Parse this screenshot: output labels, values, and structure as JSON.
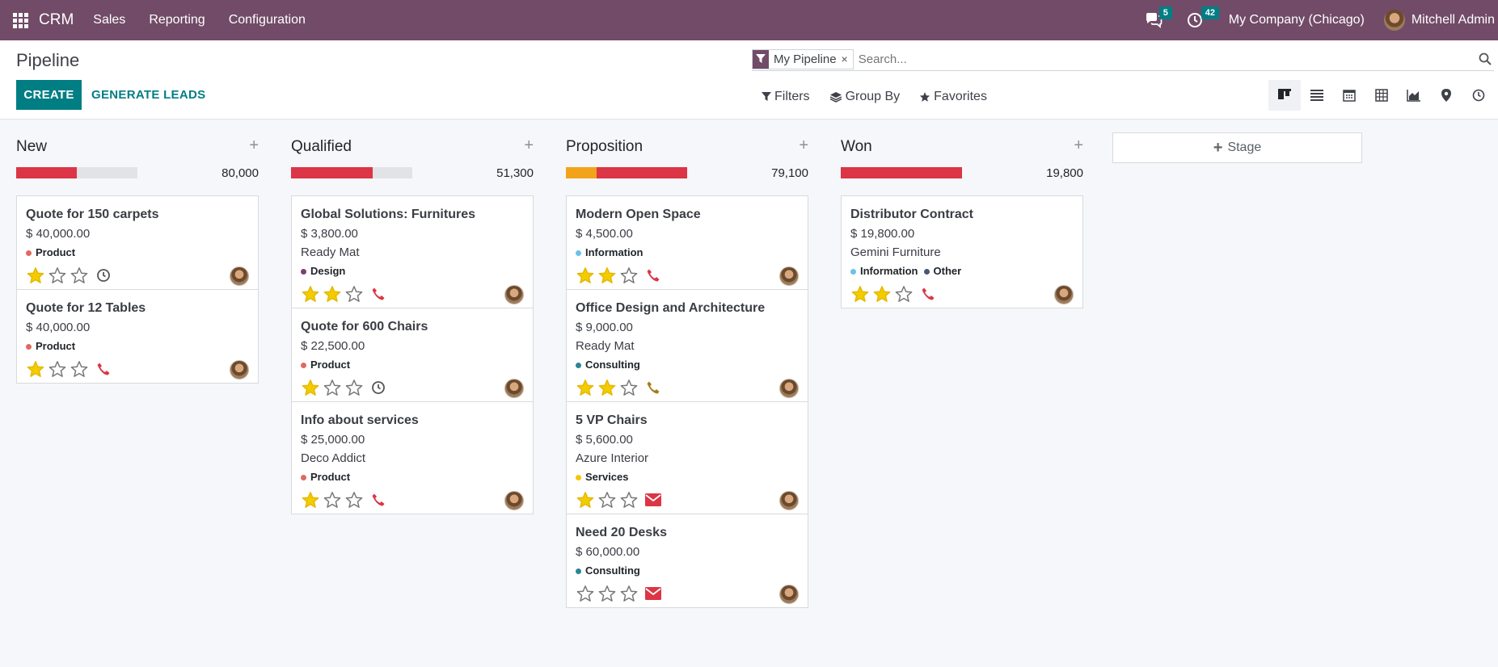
{
  "navbar": {
    "brand": "CRM",
    "menu": [
      "Sales",
      "Reporting",
      "Configuration"
    ],
    "messages_count": "5",
    "activities_count": "42",
    "company": "My Company (Chicago)",
    "user": "Mitchell Admin"
  },
  "control": {
    "title": "Pipeline",
    "create_label": "CREATE",
    "generate_label": "GENERATE LEADS",
    "facet": "My Pipeline",
    "facet_remove": "×",
    "search_placeholder": "Search...",
    "filters_label": "Filters",
    "groupby_label": "Group By",
    "favorites_label": "Favorites",
    "views": [
      "kanban-icon",
      "list-icon",
      "calendar-icon",
      "pivot-icon",
      "graph-icon",
      "map-icon",
      "activity-icon"
    ]
  },
  "colors": {
    "brand": "#714b67",
    "accent": "#017e84",
    "danger": "#dc3545",
    "warning": "#f3a319",
    "star": "#f3cc00"
  },
  "tag_colors": {
    "Product": "#e06a5f",
    "Design": "#7c3f6e",
    "Information": "#6cc1ed",
    "Consulting": "#2c8397",
    "Services": "#f4c609",
    "Other": "#475577"
  },
  "columns": [
    {
      "title": "New",
      "plus": "+",
      "total": "80,000",
      "progress": [
        {
          "color": "#dc3545",
          "fraction": 0.5
        }
      ],
      "cards": [
        {
          "title": "Quote for 150 carpets",
          "amount": "$ 40,000.00",
          "partner": "",
          "tags": [
            "Product"
          ],
          "stars": 1,
          "activity": "clock-icon"
        },
        {
          "title": "Quote for 12 Tables",
          "amount": "$ 40,000.00",
          "partner": "",
          "tags": [
            "Product"
          ],
          "stars": 1,
          "activity": "phone-icon"
        }
      ]
    },
    {
      "title": "Qualified",
      "plus": "+",
      "total": "51,300",
      "progress": [
        {
          "color": "#dc3545",
          "fraction": 0.67
        }
      ],
      "cards": [
        {
          "title": "Global Solutions: Furnitures",
          "amount": "$ 3,800.00",
          "partner": "Ready Mat",
          "tags": [
            "Design"
          ],
          "stars": 2,
          "activity": "phone-icon"
        },
        {
          "title": "Quote for 600 Chairs",
          "amount": "$ 22,500.00",
          "partner": "",
          "tags": [
            "Product"
          ],
          "stars": 1,
          "activity": "clock-icon"
        },
        {
          "title": "Info about services",
          "amount": "$ 25,000.00",
          "partner": "Deco Addict",
          "tags": [
            "Product"
          ],
          "stars": 1,
          "activity": "phone-icon"
        }
      ]
    },
    {
      "title": "Proposition",
      "plus": "+",
      "total": "79,100",
      "progress": [
        {
          "color": "#f3a319",
          "fraction": 0.25
        },
        {
          "color": "#dc3545",
          "fraction": 0.75
        }
      ],
      "cards": [
        {
          "title": "Modern Open Space",
          "amount": "$ 4,500.00",
          "partner": "",
          "tags": [
            "Information"
          ],
          "stars": 2,
          "activity": "phone-icon"
        },
        {
          "title": "Office Design and Architecture",
          "amount": "$ 9,000.00",
          "partner": "Ready Mat",
          "tags": [
            "Consulting"
          ],
          "stars": 2,
          "activity": "phone-warning-icon"
        },
        {
          "title": "5 VP Chairs",
          "amount": "$ 5,600.00",
          "partner": "Azure Interior",
          "tags": [
            "Services"
          ],
          "stars": 1,
          "activity": "envelope-icon"
        },
        {
          "title": "Need 20 Desks",
          "amount": "$ 60,000.00",
          "partner": "",
          "tags": [
            "Consulting"
          ],
          "stars": 0,
          "activity": "envelope-icon"
        }
      ]
    },
    {
      "title": "Won",
      "plus": "+",
      "total": "19,800",
      "progress": [
        {
          "color": "#dc3545",
          "fraction": 1.0
        }
      ],
      "cards": [
        {
          "title": "Distributor Contract",
          "amount": "$ 19,800.00",
          "partner": "Gemini Furniture",
          "tags": [
            "Information",
            "Other"
          ],
          "stars": 2,
          "activity": "phone-icon"
        }
      ]
    }
  ],
  "add_stage_label": "Stage"
}
